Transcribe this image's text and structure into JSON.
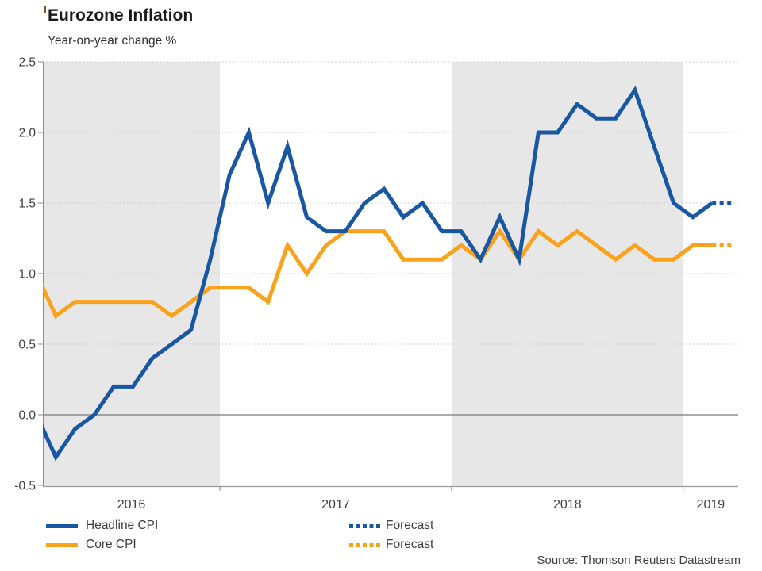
{
  "chart": {
    "title": "Eurozone Inflation",
    "subtitle": "Year-on-year change %",
    "source": "Source: Thomson Reuters Datastream"
  },
  "colors": {
    "headline_blue": "#1a57a3",
    "core_orange": "#faa21c",
    "year_band_gray": "#e7e7e7",
    "gridline": "#c8c8c8",
    "zero_line": "#7a7a7a",
    "axis": "#9b9b9b",
    "tick": "#8a8a8a",
    "axis_text": "#3d3d3d"
  },
  "legend": [
    {
      "label": "Headline CPI",
      "color": "#1a57a3",
      "style": "solid"
    },
    {
      "label": "Core CPI",
      "color": "#faa21c",
      "style": "solid"
    },
    {
      "label": "Forecast",
      "color": "#1a57a3",
      "style": "dotted"
    },
    {
      "label": "Forecast",
      "color": "#faa21c",
      "style": "dotted"
    }
  ],
  "chart_data": {
    "type": "line",
    "title": "Eurozone Inflation",
    "subtitle": "Year-on-year change %",
    "ylabel": "Year-on-year change %",
    "ylim": [
      -0.5,
      2.5
    ],
    "y_ticks": [
      2.5,
      2.0,
      1.5,
      1.0,
      0.5,
      0.0,
      -0.5
    ],
    "grid": "dotted-horizontal",
    "legend_position": "bottom-left",
    "x_year_labels": [
      "2016",
      "2017",
      "2018",
      "2019"
    ],
    "year_bands": [
      "2016",
      "2018"
    ],
    "months": [
      "2016-03",
      "2016-04",
      "2016-05",
      "2016-06",
      "2016-07",
      "2016-08",
      "2016-09",
      "2016-10",
      "2016-11",
      "2016-12",
      "2017-01",
      "2017-02",
      "2017-03",
      "2017-04",
      "2017-05",
      "2017-06",
      "2017-07",
      "2017-08",
      "2017-09",
      "2017-10",
      "2017-11",
      "2017-12",
      "2018-01",
      "2018-02",
      "2018-03",
      "2018-04",
      "2018-05",
      "2018-06",
      "2018-07",
      "2018-08",
      "2018-09",
      "2018-10",
      "2018-11",
      "2018-12",
      "2019-01",
      "2019-02",
      "2019-03"
    ],
    "series": [
      {
        "name": "Headline CPI",
        "color": "#1a57a3",
        "forecast_last_n": 1,
        "values": [
          0.0,
          -0.3,
          -0.1,
          0.0,
          0.2,
          0.2,
          0.4,
          0.5,
          0.6,
          1.1,
          1.7,
          2.0,
          1.5,
          1.9,
          1.4,
          1.3,
          1.3,
          1.5,
          1.6,
          1.4,
          1.5,
          1.3,
          1.3,
          1.1,
          1.4,
          1.1,
          2.0,
          2.0,
          2.2,
          2.1,
          2.1,
          2.3,
          1.9,
          1.5,
          1.4,
          1.5,
          1.5
        ]
      },
      {
        "name": "Core CPI",
        "color": "#faa21c",
        "forecast_last_n": 1,
        "values": [
          1.0,
          0.7,
          0.8,
          0.8,
          0.8,
          0.8,
          0.8,
          0.7,
          0.8,
          0.9,
          0.9,
          0.9,
          0.8,
          1.2,
          1.0,
          1.2,
          1.3,
          1.3,
          1.3,
          1.1,
          1.1,
          1.1,
          1.2,
          1.1,
          1.3,
          1.1,
          1.3,
          1.2,
          1.3,
          1.2,
          1.1,
          1.2,
          1.1,
          1.1,
          1.2,
          1.2,
          1.2
        ]
      }
    ]
  }
}
